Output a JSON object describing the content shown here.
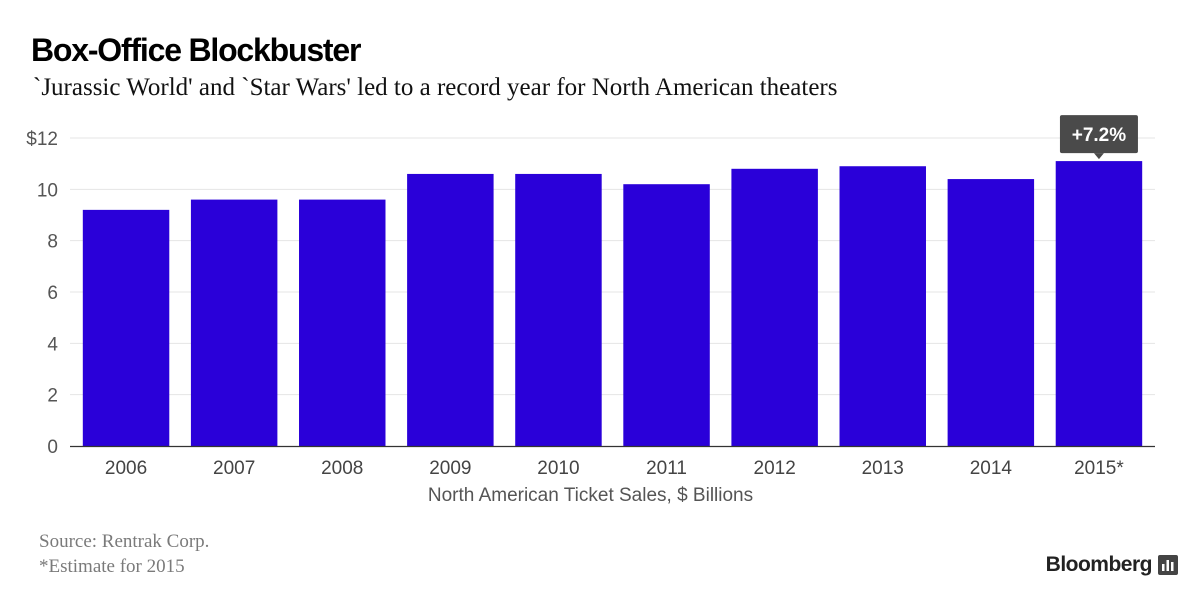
{
  "header": {
    "title": "Box-Office Blockbuster",
    "subtitle": "`Jurassic World' and `Star Wars' led to a record year for North American theaters"
  },
  "chart_data": {
    "type": "bar",
    "categories": [
      "2006",
      "2007",
      "2008",
      "2009",
      "2010",
      "2011",
      "2012",
      "2013",
      "2014",
      "2015*"
    ],
    "values": [
      9.2,
      9.6,
      9.6,
      10.6,
      10.6,
      10.2,
      10.8,
      10.9,
      10.4,
      11.1
    ],
    "xlabel": "North American Ticket Sales, $ Billions",
    "ylabel": "",
    "ylim": [
      0,
      12
    ],
    "yticks": [
      "0",
      "2",
      "4",
      "6",
      "8",
      "10",
      "$12"
    ],
    "grid": true,
    "bar_color": "#2a00d9",
    "annotation": {
      "category": "2015*",
      "text": "+7.2%",
      "background": "#4a4a4a"
    }
  },
  "footer": {
    "source": "Source: Rentrak Corp.",
    "note": "*Estimate for 2015",
    "brand": "Bloomberg",
    "brand_icon": "bloomberg-terminal-icon"
  }
}
